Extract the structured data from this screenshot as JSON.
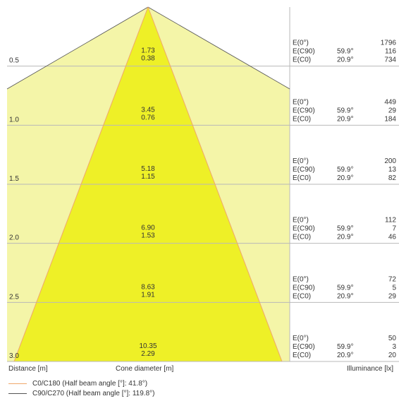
{
  "chart_data": {
    "type": "cone_diagram",
    "xlabel": "Distance [m]",
    "center_label": "Cone diameter [m]",
    "right_label": "Illuminance [lx]",
    "colors": {
      "c90_cone_fill": "#f4f5a8",
      "c0_cone_fill": "#eef027",
      "c0_line": "#f0a86b",
      "c90_line": "#555555",
      "gridline": "#b9b9b9"
    },
    "distances": [
      "0.5",
      "1.0",
      "1.5",
      "2.0",
      "2.5",
      "3.0"
    ],
    "cone_diameters": [
      {
        "c90": "1.73",
        "c0": "0.38"
      },
      {
        "c90": "3.45",
        "c0": "0.76"
      },
      {
        "c90": "5.18",
        "c0": "1.15"
      },
      {
        "c90": "6.90",
        "c0": "1.53"
      },
      {
        "c90": "8.63",
        "c0": "1.91"
      },
      {
        "c90": "10.35",
        "c0": "2.29"
      }
    ],
    "illuminance": [
      {
        "e0": "1796",
        "ec90": "116",
        "ec0": "734"
      },
      {
        "e0": "449",
        "ec90": "29",
        "ec0": "184"
      },
      {
        "e0": "200",
        "ec90": "13",
        "ec0": "82"
      },
      {
        "e0": "112",
        "ec90": "7",
        "ec0": "46"
      },
      {
        "e0": "72",
        "ec90": "5",
        "ec0": "29"
      },
      {
        "e0": "50",
        "ec90": "3",
        "ec0": "20"
      }
    ],
    "row_labels": {
      "e0": "E(0°)",
      "ec90": "E(C90)",
      "ec0": "E(C0)"
    },
    "angles": {
      "c90": "59.9°",
      "c0": "20.9°"
    },
    "legend": [
      {
        "label": "C0/C180 (Half beam angle [°]: 41.8°)",
        "color": "#f0a86b"
      },
      {
        "label": "C90/C270 (Half beam angle [°]: 119.8°)",
        "color": "#555555"
      }
    ]
  }
}
